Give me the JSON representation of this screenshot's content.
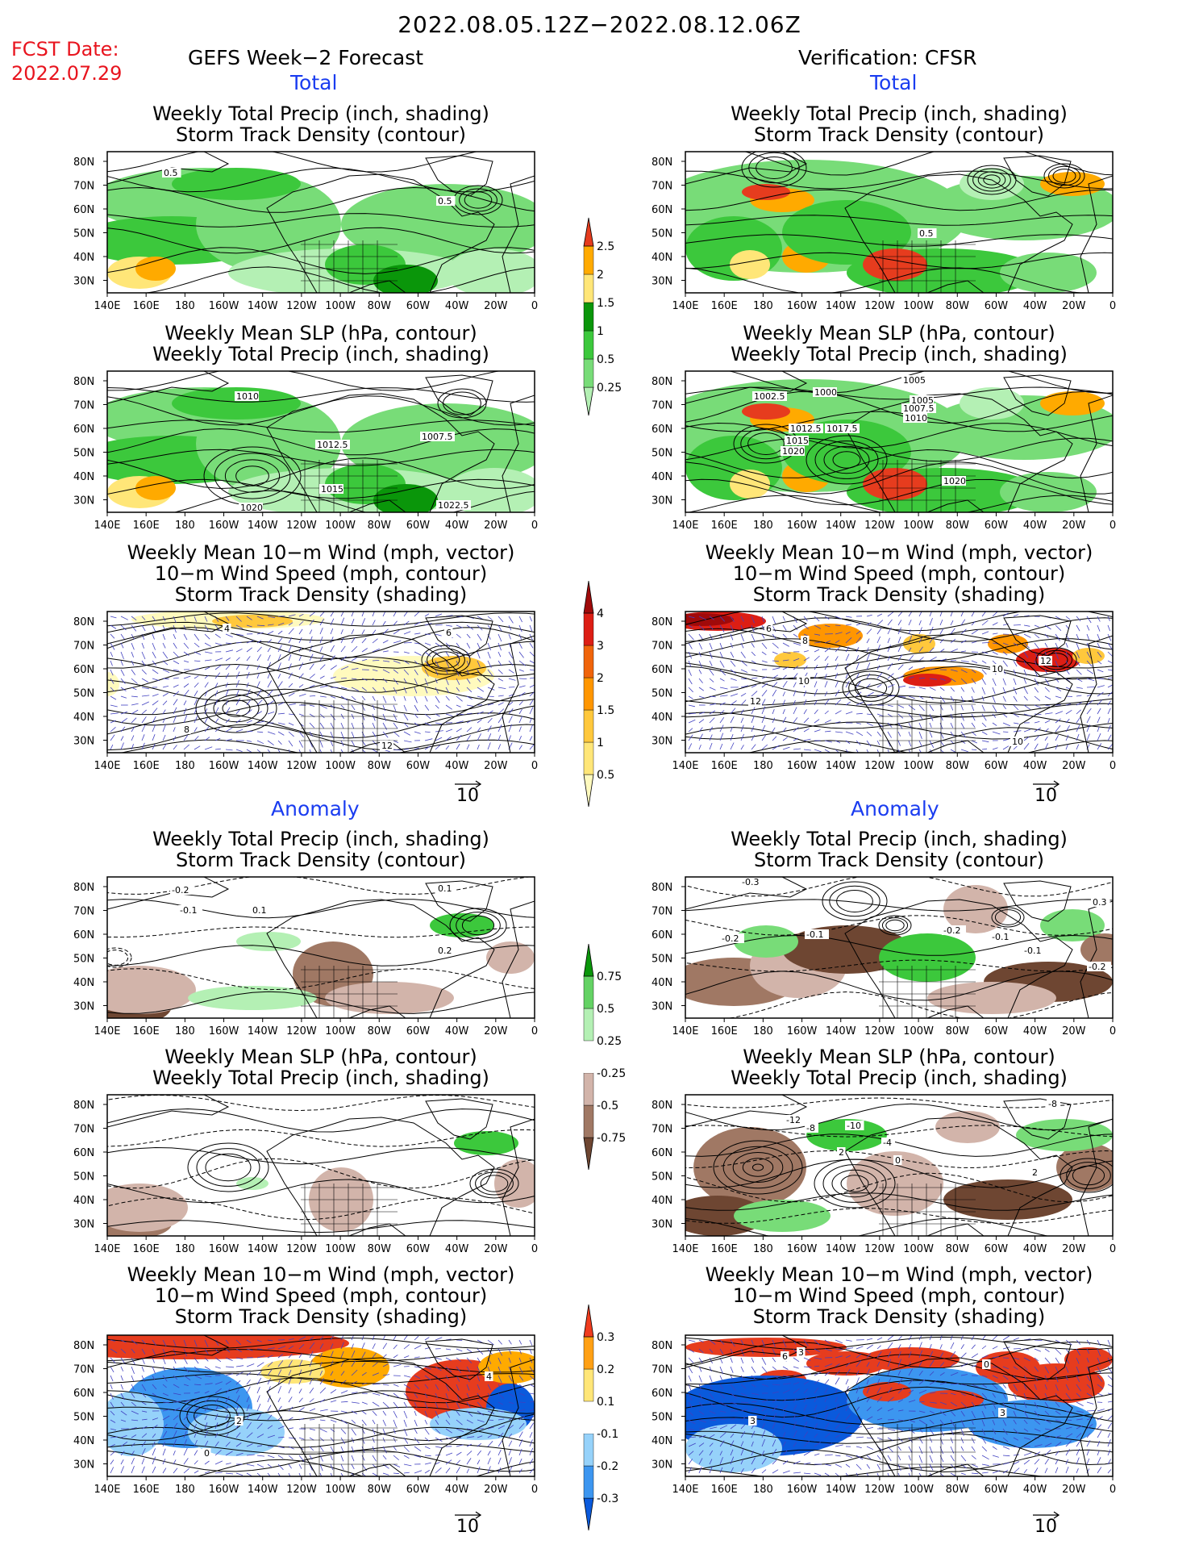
{
  "header": {
    "date_range": "2022.08.05.12Z−2022.08.12.06Z",
    "fcst_label": "FCST Date:",
    "fcst_date": "2022.07.29",
    "left_model": "GEFS Week−2 Forecast",
    "right_model": "Verification: CFSR"
  },
  "sections": {
    "total": "Total",
    "anomaly": "Anomaly"
  },
  "panel_titles": {
    "precip_storm": [
      "Weekly Total Precip (inch, shading)",
      "Storm Track Density (contour)"
    ],
    "slp_precip": [
      "Weekly Mean SLP (hPa, contour)",
      "Weekly Total Precip (inch, shading)"
    ],
    "wind_storm": [
      "Weekly Mean 10−m Wind (mph, vector)",
      "10−m Wind Speed (mph, contour)",
      "Storm Track Density (shading)"
    ]
  },
  "axes": {
    "lat_ticks": [
      "80N",
      "70N",
      "60N",
      "50N",
      "40N",
      "30N"
    ],
    "lon_ticks": [
      "140E",
      "160E",
      "180",
      "160W",
      "140W",
      "120W",
      "100W",
      "80W",
      "60W",
      "40W",
      "20W",
      "0"
    ]
  },
  "vector_reference": "10",
  "colorbars": {
    "total_precip": {
      "labels": [
        "0.25",
        "0.5",
        "1",
        "1.5",
        "2",
        "2.5"
      ],
      "colors": [
        "#b4f0b4",
        "#78dc78",
        "#3cc83c",
        "#0a960a",
        "#ffe678",
        "#ffaa00",
        "#e63c1e"
      ]
    },
    "total_storm": {
      "labels": [
        "0.5",
        "1",
        "1.5",
        "2",
        "3",
        "4"
      ],
      "colors": [
        "#fffabe",
        "#ffe678",
        "#ffc83c",
        "#ff9600",
        "#f0640a",
        "#dc1e14",
        "#a00a0a"
      ]
    },
    "anom_precip": {
      "labels": [
        "-0.75",
        "-0.5",
        "-0.25",
        "0.25",
        "0.5",
        "0.75"
      ],
      "colors": [
        "#6e4632",
        "#a07864",
        "#d2b4aa",
        "#ffffff",
        "#b4f0b4",
        "#64d264",
        "#0a960a"
      ]
    },
    "anom_storm": {
      "labels": [
        "-0.3",
        "-0.2",
        "-0.1",
        "0.1",
        "0.2",
        "0.3"
      ],
      "colors": [
        "#0a5adc",
        "#3c96f0",
        "#96d2fa",
        "#ffffff",
        "#ffe678",
        "#ffa014",
        "#f03c1e"
      ]
    }
  },
  "contour_labels": {
    "gefs_total_precip_storm": [
      "0.5",
      "0.5"
    ],
    "gefs_total_slp": [
      "1010",
      "1012.5",
      "1007.5",
      "1015",
      "1020",
      "1022.5"
    ],
    "gefs_total_wind": [
      "4",
      "6",
      "8",
      "12"
    ],
    "cfsr_total_precip_storm": [
      "0.5"
    ],
    "cfsr_total_slp": [
      "1005",
      "1002.5",
      "1000",
      "1005",
      "1007.5",
      "1010",
      "1012.5",
      "1017.5",
      "1015",
      "1020",
      "1020"
    ],
    "cfsr_total_wind": [
      "6",
      "8",
      "10",
      "12",
      "10",
      "12",
      "10"
    ],
    "gefs_anom_precip_storm": [
      "-0.2",
      "-0.1",
      "0.1",
      "0.1",
      "0.2"
    ],
    "gefs_anom_wind": [
      "2",
      "4",
      "0"
    ],
    "cfsr_anom_precip_storm": [
      "-0.3",
      "-0.1",
      "-0.2",
      "-0.1",
      "0.3",
      "-0.2",
      "-0.1",
      "-0.2"
    ],
    "cfsr_anom_slp": [
      "-12",
      "-8",
      "-10",
      "-4",
      "2",
      "0",
      "-8",
      "2"
    ],
    "cfsr_anom_wind": [
      "6",
      "3",
      "3",
      "0",
      "3"
    ]
  }
}
